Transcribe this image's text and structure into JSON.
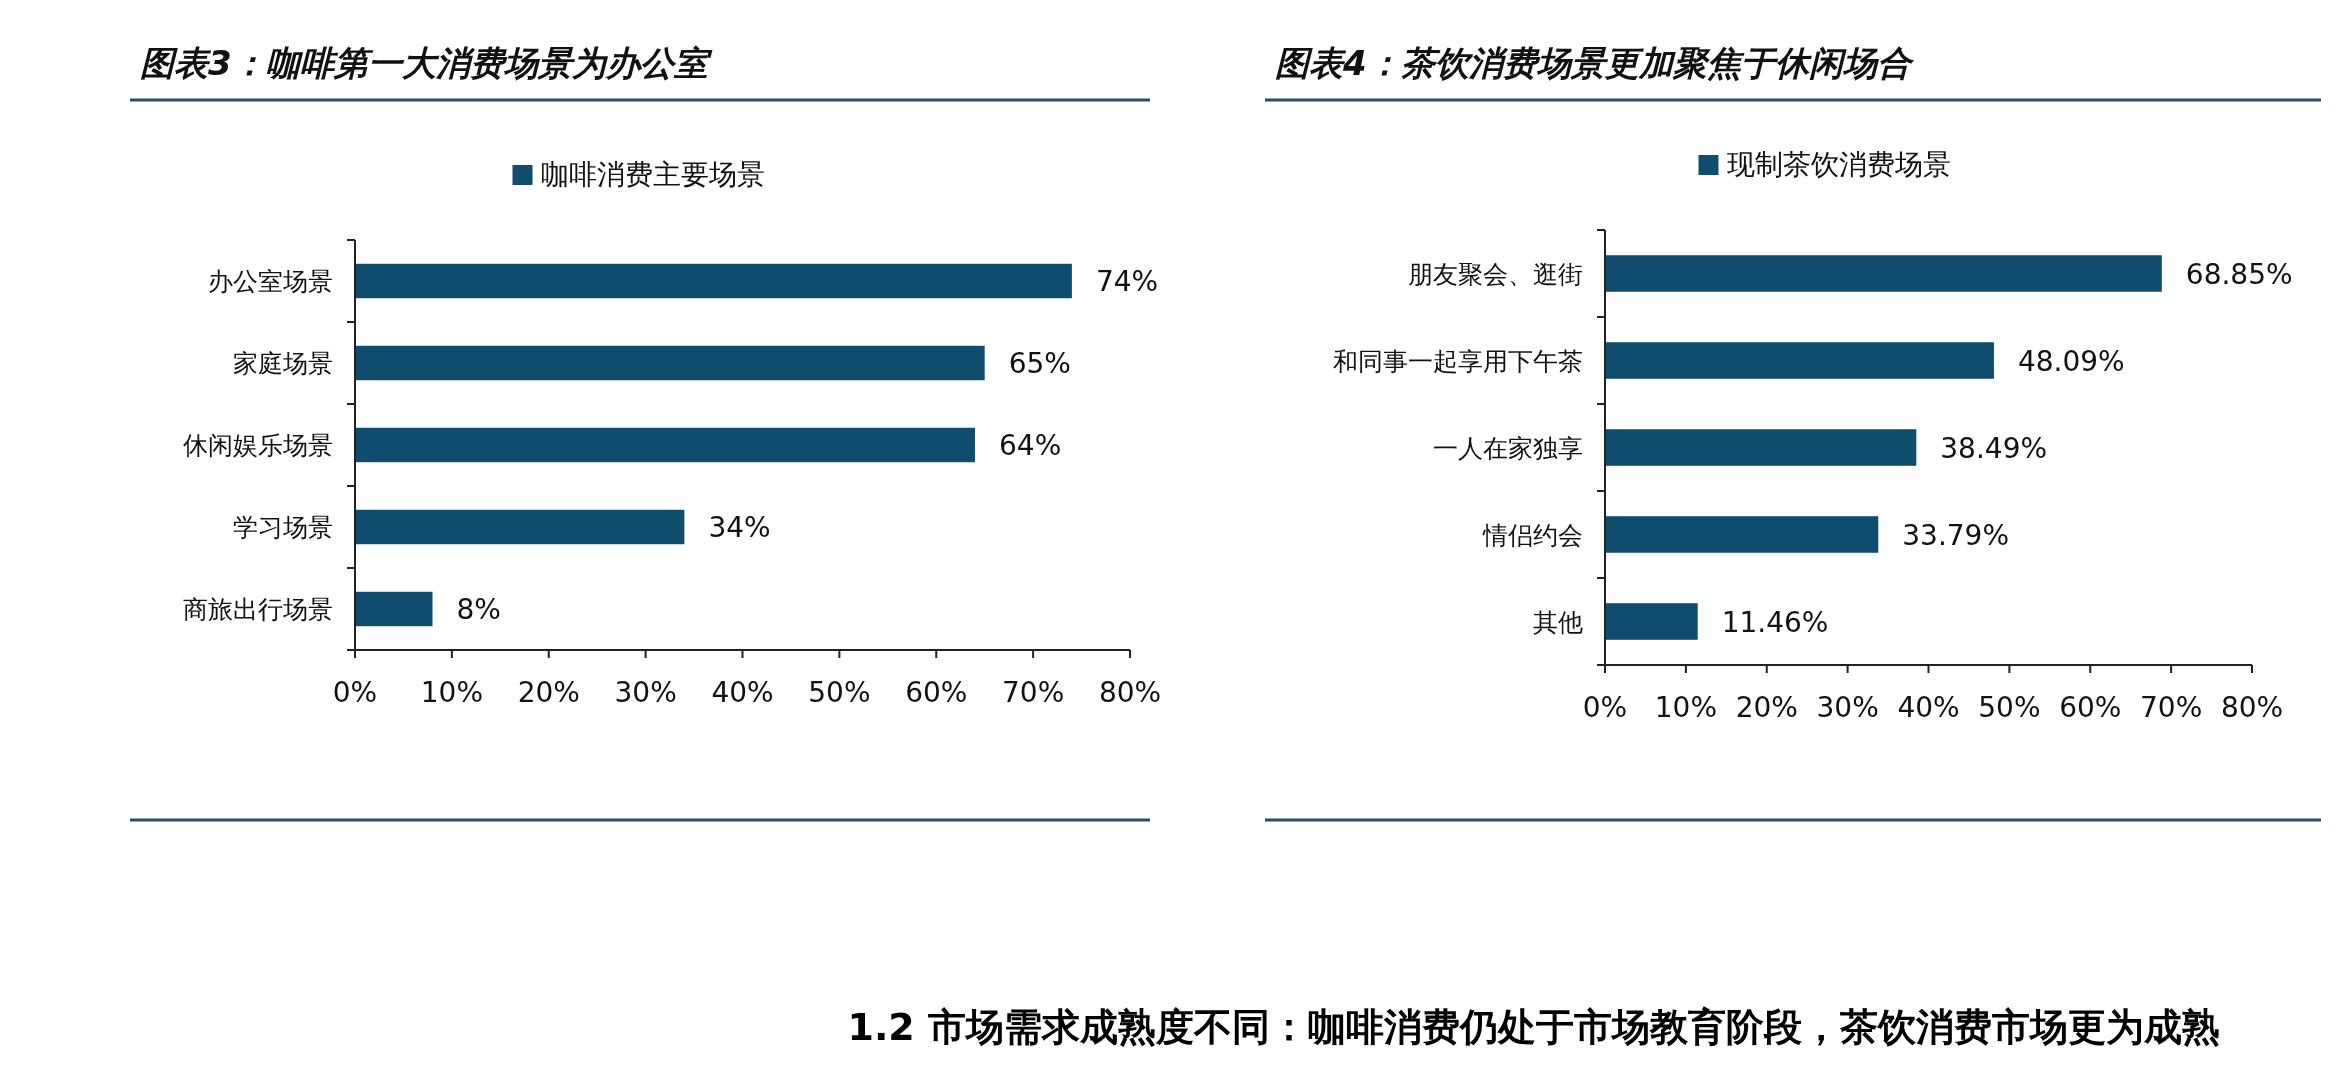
{
  "chart_data": [
    {
      "type": "bar",
      "orientation": "horizontal",
      "title": "图表3：咖啡第一大消费场景为办公室",
      "categories": [
        "办公室场景",
        "家庭场景",
        "休闲娱乐场景",
        "学习场景",
        "商旅出行场景"
      ],
      "series": [
        {
          "name": "咖啡消费主要场景",
          "color": "#0f4c6e",
          "values": [
            74,
            65,
            64,
            34,
            8
          ],
          "value_labels": [
            "74%",
            "65%",
            "64%",
            "34%",
            "8%"
          ]
        }
      ],
      "xlim": [
        0,
        80
      ],
      "xticks": [
        {
          "value": 0,
          "label": "0%"
        },
        {
          "value": 10,
          "label": "10%"
        },
        {
          "value": 20,
          "label": "20%"
        },
        {
          "value": 30,
          "label": "30%"
        },
        {
          "value": 40,
          "label": "40%"
        },
        {
          "value": 50,
          "label": "50%"
        },
        {
          "value": 60,
          "label": "60%"
        },
        {
          "value": 70,
          "label": "70%"
        },
        {
          "value": 80,
          "label": "80%"
        }
      ],
      "legend": "top"
    },
    {
      "type": "bar",
      "orientation": "horizontal",
      "title": "图表4：茶饮消费场景更加聚焦于休闲场合",
      "categories": [
        "朋友聚会、逛街",
        "和同事一起享用下午茶",
        "一人在家独享",
        "情侣约会",
        "其他"
      ],
      "series": [
        {
          "name": "现制茶饮消费场景",
          "color": "#0f4c6e",
          "values": [
            68.85,
            48.09,
            38.49,
            33.79,
            11.46
          ],
          "value_labels": [
            "68.85%",
            "48.09%",
            "38.49%",
            "33.79%",
            "11.46%"
          ]
        }
      ],
      "xlim": [
        0,
        80
      ],
      "xticks": [
        {
          "value": 0,
          "label": "0%"
        },
        {
          "value": 10,
          "label": "10%"
        },
        {
          "value": 20,
          "label": "20%"
        },
        {
          "value": 30,
          "label": "30%"
        },
        {
          "value": 40,
          "label": "40%"
        },
        {
          "value": 50,
          "label": "50%"
        },
        {
          "value": 60,
          "label": "60%"
        },
        {
          "value": 70,
          "label": "70%"
        },
        {
          "value": 80,
          "label": "80%"
        }
      ],
      "legend": "top"
    },
    {
      "type": "other",
      "title": "1.2 市场需求成熟度不同：咖啡消费仍处于市场教育阶段，茶饮消费市场更为成熟"
    }
  ]
}
